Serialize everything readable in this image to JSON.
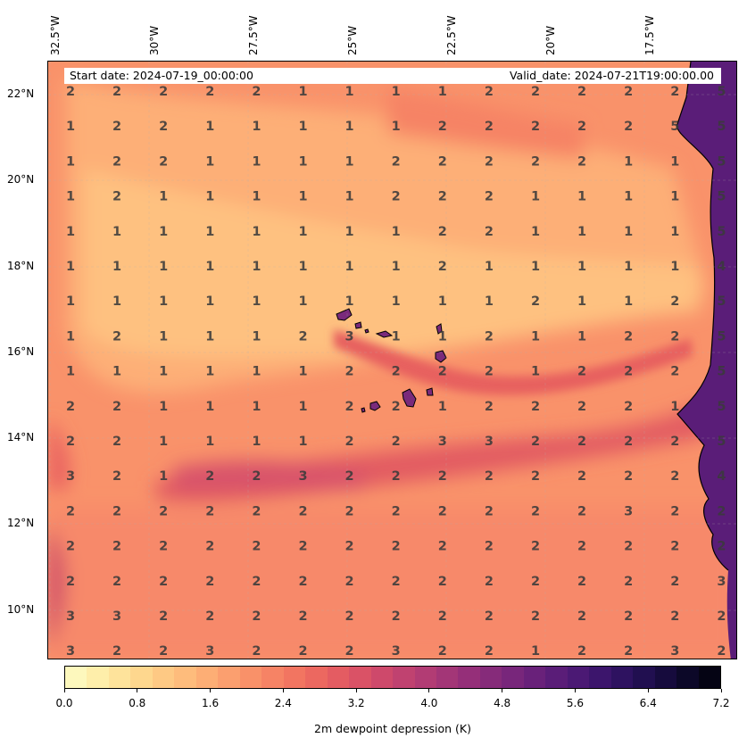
{
  "header": {
    "start_date": "Start date: 2024-07-19_00:00:00",
    "valid_date": "Valid_date: 2024-07-21T19:00:00.00"
  },
  "longitude_labels": [
    "32.5°W",
    "30°W",
    "27.5°W",
    "25°W",
    "22.5°W",
    "20°W",
    "17.5°W"
  ],
  "latitude_labels": [
    "22°N",
    "20°N",
    "18°N",
    "16°N",
    "14°N",
    "12°N",
    "10°N"
  ],
  "value_grid": [
    [
      "2",
      "2",
      "2",
      "2",
      "2",
      "1",
      "1",
      "1",
      "1",
      "2",
      "2",
      "2",
      "2",
      "2",
      "5"
    ],
    [
      "1",
      "2",
      "2",
      "1",
      "1",
      "1",
      "1",
      "1",
      "2",
      "2",
      "2",
      "2",
      "2",
      "5",
      "5"
    ],
    [
      "1",
      "2",
      "2",
      "1",
      "1",
      "1",
      "1",
      "2",
      "2",
      "2",
      "2",
      "2",
      "1",
      "1",
      "5"
    ],
    [
      "1",
      "2",
      "1",
      "1",
      "1",
      "1",
      "1",
      "2",
      "2",
      "2",
      "1",
      "1",
      "1",
      "1",
      "5"
    ],
    [
      "1",
      "1",
      "1",
      "1",
      "1",
      "1",
      "1",
      "1",
      "2",
      "2",
      "1",
      "1",
      "1",
      "1",
      "5"
    ],
    [
      "1",
      "1",
      "1",
      "1",
      "1",
      "1",
      "1",
      "1",
      "2",
      "1",
      "1",
      "1",
      "1",
      "1",
      "4"
    ],
    [
      "1",
      "1",
      "1",
      "1",
      "1",
      "1",
      "1",
      "1",
      "1",
      "1",
      "2",
      "1",
      "1",
      "2",
      "5"
    ],
    [
      "1",
      "2",
      "1",
      "1",
      "1",
      "2",
      "3",
      "1",
      "1",
      "2",
      "1",
      "1",
      "2",
      "2",
      "5"
    ],
    [
      "1",
      "1",
      "1",
      "1",
      "1",
      "1",
      "2",
      "2",
      "2",
      "2",
      "1",
      "2",
      "2",
      "2",
      "5"
    ],
    [
      "2",
      "2",
      "1",
      "1",
      "1",
      "1",
      "2",
      "2",
      "1",
      "2",
      "2",
      "2",
      "2",
      "1",
      "5"
    ],
    [
      "2",
      "2",
      "1",
      "1",
      "1",
      "1",
      "2",
      "2",
      "3",
      "3",
      "2",
      "2",
      "2",
      "2",
      "5"
    ],
    [
      "3",
      "2",
      "1",
      "2",
      "2",
      "3",
      "2",
      "2",
      "2",
      "2",
      "2",
      "2",
      "2",
      "2",
      "4"
    ],
    [
      "2",
      "2",
      "2",
      "2",
      "2",
      "2",
      "2",
      "2",
      "2",
      "2",
      "2",
      "2",
      "3",
      "2",
      "2"
    ],
    [
      "2",
      "2",
      "2",
      "2",
      "2",
      "2",
      "2",
      "2",
      "2",
      "2",
      "2",
      "2",
      "2",
      "2",
      "2"
    ],
    [
      "2",
      "2",
      "2",
      "2",
      "2",
      "2",
      "2",
      "2",
      "2",
      "2",
      "2",
      "2",
      "2",
      "2",
      "3"
    ],
    [
      "3",
      "3",
      "2",
      "2",
      "2",
      "2",
      "2",
      "2",
      "2",
      "2",
      "2",
      "2",
      "2",
      "2",
      "2"
    ],
    [
      "3",
      "2",
      "2",
      "3",
      "2",
      "2",
      "2",
      "3",
      "2",
      "2",
      "1",
      "2",
      "2",
      "3",
      "2"
    ]
  ],
  "colorbar": {
    "ticks": [
      "0.0",
      "0.8",
      "1.6",
      "2.4",
      "3.2",
      "4.0",
      "4.8",
      "5.6",
      "6.4",
      "7.2"
    ],
    "title": "2m dewpoint depression (K)",
    "colors": [
      "#fdf8bd",
      "#feeeaa",
      "#fee39b",
      "#fed78e",
      "#fec984",
      "#febc7c",
      "#fdae75",
      "#fb9f6f",
      "#f99169",
      "#f68365",
      "#f27561",
      "#ec6860",
      "#e45c62",
      "#da5266",
      "#ce496b",
      "#c04270",
      "#b23c74",
      "#a33677",
      "#952f79",
      "#862b7a",
      "#78267b",
      "#69217a",
      "#5a1d78",
      "#4b1974",
      "#3c156c",
      "#2e1260",
      "#210f50",
      "#160b3d",
      "#0c0828",
      "#050414"
    ],
    "colormap": "magma_r"
  }
}
